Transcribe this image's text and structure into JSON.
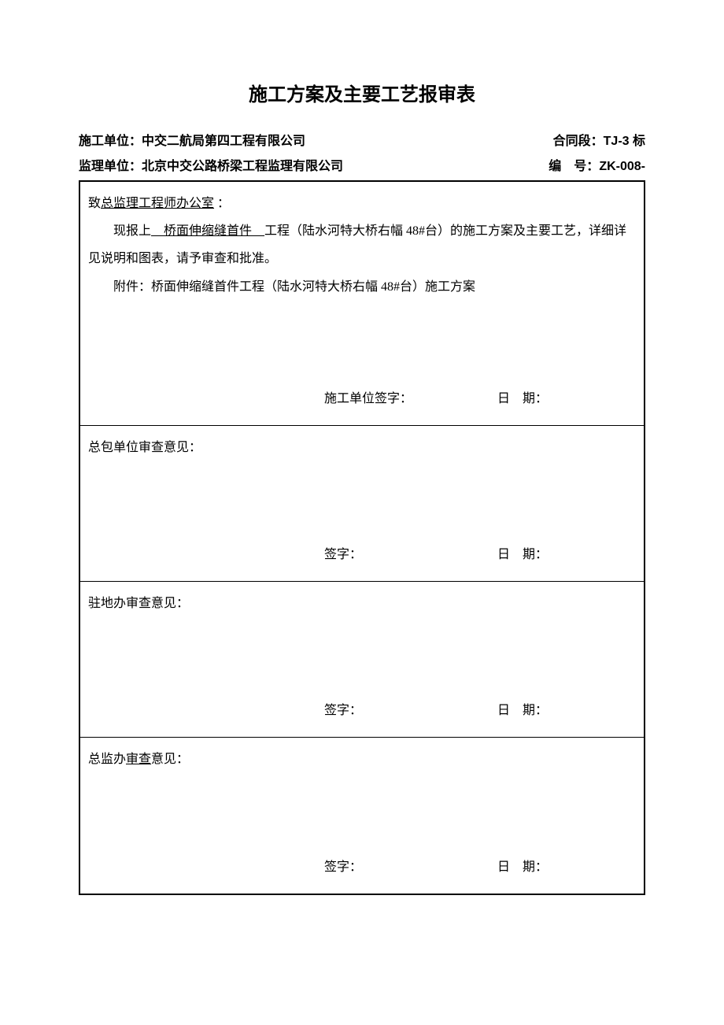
{
  "document": {
    "title": "施工方案及主要工艺报审表",
    "header": {
      "construction_unit_label": "施工单位：",
      "construction_unit_value": "中交二航局第四工程有限公司",
      "contract_section_label": "合同段：",
      "contract_section_value": "TJ-3 标",
      "supervision_unit_label": "监理单位：",
      "supervision_unit_value": "北京中交公路桥梁工程监理有限公司",
      "serial_label": "编 号：",
      "serial_value": "ZK-008-"
    },
    "section1": {
      "salutation_prefix": "致",
      "salutation_underline": "总监理工程师办公室",
      "salutation_suffix": " ：",
      "body_prefix": "现报上",
      "body_underline": " 桥面伸缩缝首件 ",
      "body_suffix": "工程（陆水河特大桥右幅 48#台）的施工方案及主要工艺，详细详见说明和图表，请予审查和批准。",
      "attachment": "附件：桥面伸缩缝首件工程（陆水河特大桥右幅 48#台）施工方案",
      "sig_label": "施工单位签字：",
      "date_label": "日 期："
    },
    "section2": {
      "heading": "总包单位审查意见：",
      "sig_label": "签字：",
      "date_label": "日 期："
    },
    "section3": {
      "heading": "驻地办审查意见：",
      "sig_label": "签字：",
      "date_label": "日 期："
    },
    "section4": {
      "heading_prefix": "总监办",
      "heading_underline": "审查",
      "heading_suffix": "意见：",
      "sig_label": "签字：",
      "date_label": "日 期："
    }
  }
}
